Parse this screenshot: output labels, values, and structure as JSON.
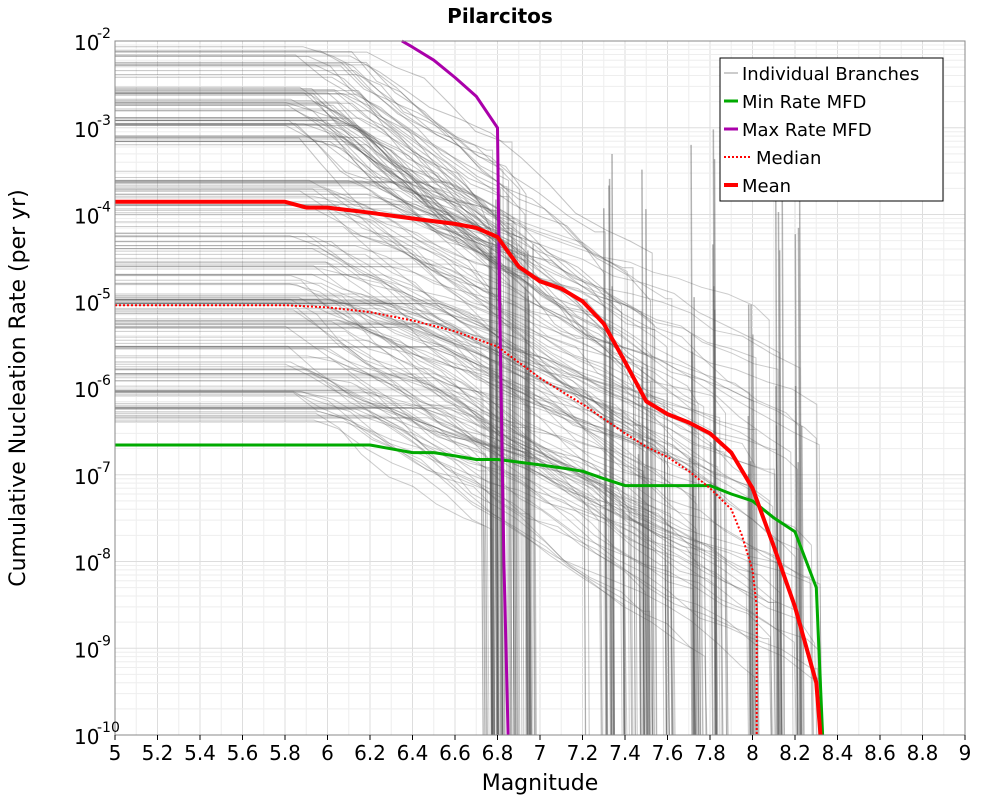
{
  "chart_data": {
    "type": "line",
    "title": "Pilarcitos",
    "xlabel": "Magnitude",
    "ylabel": "Cumulative Nucleation Rate (per yr)",
    "xlim": [
      5,
      9
    ],
    "ylim_log10": [
      -10,
      -2
    ],
    "y_scale": "log",
    "x_ticks": [
      "5",
      "5.2",
      "5.4",
      "5.6",
      "5.8",
      "6",
      "6.2",
      "6.4",
      "6.6",
      "6.8",
      "7",
      "7.2",
      "7.4",
      "7.6",
      "7.8",
      "8",
      "8.2",
      "8.4",
      "8.6",
      "8.8",
      "9"
    ],
    "y_ticks": [
      {
        "base": "10",
        "exp": "-2"
      },
      {
        "base": "10",
        "exp": "-3"
      },
      {
        "base": "10",
        "exp": "-4"
      },
      {
        "base": "10",
        "exp": "-5"
      },
      {
        "base": "10",
        "exp": "-6"
      },
      {
        "base": "10",
        "exp": "-7"
      },
      {
        "base": "10",
        "exp": "-8"
      },
      {
        "base": "10",
        "exp": "-9"
      },
      {
        "base": "10",
        "exp": "-10"
      }
    ],
    "grid": true,
    "legend_position": "top-right",
    "series": [
      {
        "name": "Individual Branches",
        "color": "#555555",
        "style": "thin-translucent",
        "description_groups": "many logic-tree branch MFDs"
      },
      {
        "name": "Min Rate MFD",
        "color": "#00aa00",
        "style": "solid",
        "x": [
          5.0,
          5.8,
          6.2,
          6.4,
          6.5,
          6.6,
          6.7,
          6.8,
          6.9,
          7.0,
          7.1,
          7.2,
          7.3,
          7.4,
          7.5,
          7.6,
          7.7,
          7.8,
          7.9,
          8.0,
          8.1,
          8.2,
          8.3,
          8.33
        ],
        "y": [
          2.2e-07,
          2.2e-07,
          2.2e-07,
          1.8e-07,
          1.8e-07,
          1.65e-07,
          1.5e-07,
          1.5e-07,
          1.4e-07,
          1.3e-07,
          1.2e-07,
          1.1e-07,
          9e-08,
          7.5e-08,
          7.5e-08,
          7.5e-08,
          7.5e-08,
          7.5e-08,
          6e-08,
          5e-08,
          3.2e-08,
          2.2e-08,
          5e-09,
          1e-10
        ]
      },
      {
        "name": "Max Rate MFD",
        "color": "#aa00aa",
        "style": "solid",
        "x": [
          6.35,
          6.4,
          6.5,
          6.6,
          6.7,
          6.8,
          6.81,
          6.83,
          6.85
        ],
        "y": [
          0.01,
          0.0085,
          0.006,
          0.0038,
          0.0023,
          0.001,
          1e-05,
          1e-08,
          1e-10
        ]
      },
      {
        "name": "Median",
        "color": "#ff0000",
        "style": "dotted",
        "x": [
          5.0,
          5.8,
          6.0,
          6.2,
          6.4,
          6.6,
          6.8,
          7.0,
          7.2,
          7.4,
          7.5,
          7.6,
          7.7,
          7.8,
          7.9,
          7.95,
          8.0,
          8.02,
          8.02
        ],
        "y": [
          9e-06,
          9e-06,
          8.5e-06,
          7.5e-06,
          6e-06,
          4.5e-06,
          3e-06,
          1.3e-06,
          6.5e-07,
          3e-07,
          2.1e-07,
          1.6e-07,
          1.1e-07,
          7e-08,
          4e-08,
          2e-08,
          8e-09,
          3e-09,
          1e-10
        ]
      },
      {
        "name": "Mean",
        "color": "#ff0000",
        "style": "thick-solid",
        "x": [
          5.0,
          5.8,
          5.9,
          6.0,
          6.2,
          6.4,
          6.6,
          6.7,
          6.8,
          6.9,
          7.0,
          7.1,
          7.2,
          7.3,
          7.4,
          7.5,
          7.6,
          7.7,
          7.8,
          7.9,
          8.0,
          8.1,
          8.2,
          8.3,
          8.32
        ],
        "y": [
          0.00014,
          0.00014,
          0.00012,
          0.00012,
          0.000105,
          9e-05,
          7.8e-05,
          7e-05,
          5.5e-05,
          2.5e-05,
          1.7e-05,
          1.4e-05,
          1e-05,
          5.5e-06,
          2e-06,
          7e-07,
          5e-07,
          4e-07,
          3e-07,
          1.8e-07,
          7e-08,
          1.5e-08,
          3e-09,
          4e-10,
          1e-10
        ]
      }
    ]
  }
}
